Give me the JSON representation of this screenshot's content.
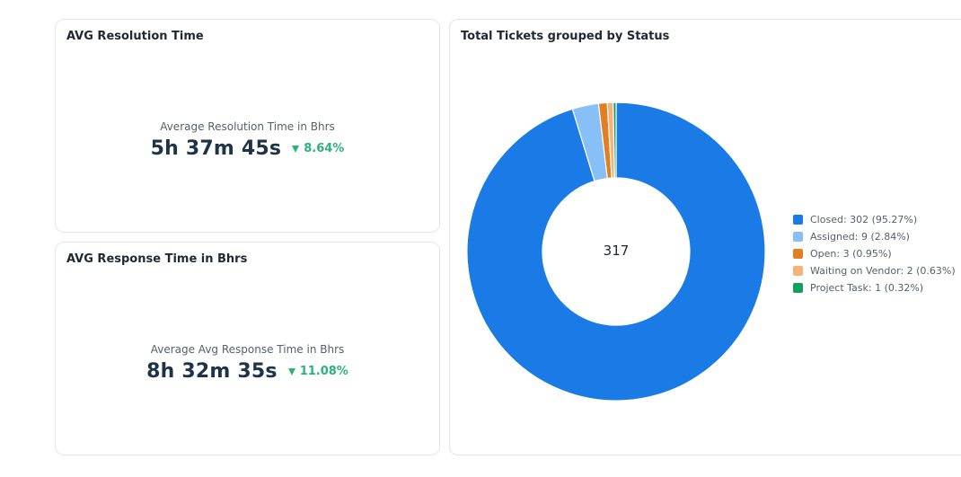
{
  "resolution_card": {
    "title": "AVG Resolution Time",
    "label": "Average Resolution Time in Bhrs",
    "value": "5h 37m 45s",
    "change": "8.64%",
    "change_direction": "down",
    "change_color": "#2bb37a"
  },
  "response_card": {
    "title": "AVG Response Time in Bhrs",
    "label": "Average Avg Response Time in Bhrs",
    "value": "8h 32m 35s",
    "change": "11.08%",
    "change_direction": "down",
    "change_color": "#2bb37a"
  },
  "tickets_card": {
    "title": "Total Tickets grouped by Status",
    "total": "317",
    "legend": [
      {
        "label": "Closed: 302 (95.27%)"
      },
      {
        "label": "Assigned: 9 (2.84%)"
      },
      {
        "label": "Open: 3 (0.95%)"
      },
      {
        "label": "Waiting on Vendor: 2 (0.63%)"
      },
      {
        "label": "Project Task: 1 (0.32%)"
      }
    ]
  },
  "chart_data": {
    "type": "pie",
    "subtype": "donut",
    "title": "Total Tickets grouped by Status",
    "center_label": "317",
    "categories": [
      "Closed",
      "Assigned",
      "Open",
      "Waiting on Vendor",
      "Project Task"
    ],
    "values": [
      302,
      9,
      3,
      2,
      1
    ],
    "percentages": [
      95.27,
      2.84,
      0.95,
      0.63,
      0.32
    ],
    "colors": [
      "#1a7ae6",
      "#87bff7",
      "#e27f22",
      "#f5b27a",
      "#12a05c"
    ],
    "legend_position": "right"
  }
}
